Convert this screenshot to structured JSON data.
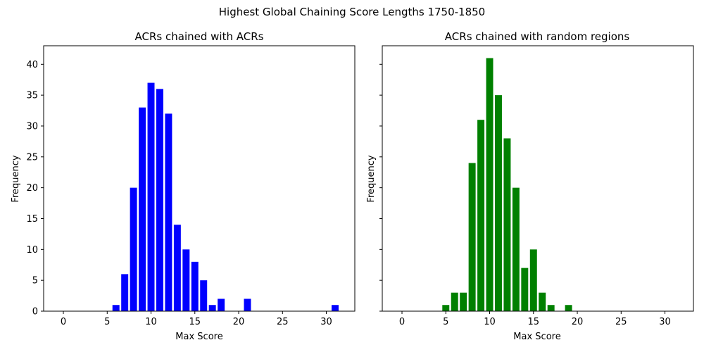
{
  "figure_title": "Highest Global Chaining Score Lengths 1750-1850",
  "chart_data": [
    {
      "type": "bar",
      "title": "ACRs chained with ACRs",
      "xlabel": "Max Score",
      "ylabel": "Frequency",
      "xlim": [
        -2.25,
        33.25
      ],
      "ylim": [
        0,
        43
      ],
      "xticks": [
        0,
        5,
        10,
        15,
        20,
        25,
        30
      ],
      "yticks": [
        0,
        5,
        10,
        15,
        20,
        25,
        30,
        35,
        40
      ],
      "ytick_labels_visible": true,
      "bar_width": 0.8,
      "color": "#0000ff",
      "x": [
        6,
        7,
        8,
        9,
        10,
        11,
        12,
        13,
        14,
        15,
        16,
        17,
        18,
        21,
        31
      ],
      "values": [
        1,
        6,
        20,
        33,
        37,
        36,
        32,
        14,
        10,
        8,
        5,
        1,
        2,
        2,
        1
      ]
    },
    {
      "type": "bar",
      "title": "ACRs chained with random regions",
      "xlabel": "Max Score",
      "ylabel": "Frequency",
      "xlim": [
        -2.25,
        33.25
      ],
      "ylim": [
        0,
        43
      ],
      "xticks": [
        0,
        5,
        10,
        15,
        20,
        25,
        30
      ],
      "yticks": [
        0,
        5,
        10,
        15,
        20,
        25,
        30,
        35,
        40
      ],
      "ytick_labels_visible": false,
      "bar_width": 0.8,
      "color": "#008000",
      "x": [
        5,
        6,
        7,
        8,
        9,
        10,
        11,
        12,
        13,
        14,
        15,
        16,
        17,
        19
      ],
      "values": [
        1,
        3,
        3,
        24,
        31,
        41,
        35,
        28,
        20,
        7,
        10,
        3,
        1,
        1
      ]
    }
  ]
}
